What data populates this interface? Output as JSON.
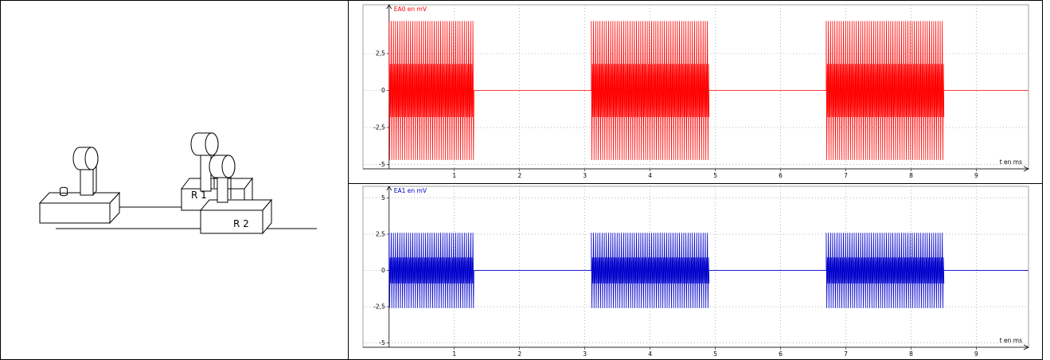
{
  "diagram": {
    "labels": {
      "r1": "R 1",
      "r2": "R 2"
    },
    "icons": [
      "emitter-icon",
      "receiver-r1-icon",
      "receiver-r2-icon"
    ]
  },
  "chart_data": [
    {
      "type": "line",
      "name_id": "ea0",
      "ylabel": "EA0 en mV",
      "xlabel": "t en ms",
      "ylim": [
        -5.3,
        5.8
      ],
      "xlim": [
        -0.4,
        9.8
      ],
      "grid": true,
      "yticks": [
        -5,
        -2.5,
        0,
        2.5
      ],
      "ytick_labels": [
        "-5",
        "-2,5",
        "0",
        "2,5"
      ],
      "xticks": [
        1,
        2,
        3,
        4,
        5,
        6,
        7,
        8,
        9
      ],
      "xtick_labels": [
        "1",
        "2",
        "3",
        "4",
        "5",
        "6",
        "7",
        "8",
        "9"
      ],
      "color": "#ff0000",
      "bursts": [
        [
          0,
          1.3
        ],
        [
          3.1,
          4.9
        ],
        [
          6.7,
          8.5
        ]
      ],
      "burst_amplitude_levels": [
        4.7,
        1.8,
        -1.8,
        -4.7
      ],
      "baseline": 0
    },
    {
      "type": "line",
      "name_id": "ea1",
      "ylabel": "EA1 en mV",
      "xlabel": "t en ms",
      "ylim": [
        -5.3,
        5.8
      ],
      "xlim": [
        -0.4,
        9.8
      ],
      "grid": true,
      "yticks": [
        -5,
        -2.5,
        0,
        2.5,
        5
      ],
      "ytick_labels": [
        "-5",
        "-2,5",
        "0",
        "2,5",
        "5"
      ],
      "xticks": [
        1,
        2,
        3,
        4,
        5,
        6,
        7,
        8,
        9
      ],
      "xtick_labels": [
        "1",
        "2",
        "3",
        "4",
        "5",
        "6",
        "7",
        "8",
        "9"
      ],
      "color": "#0000cc",
      "bursts": [
        [
          0,
          1.3
        ],
        [
          3.1,
          4.9
        ],
        [
          6.7,
          8.5
        ]
      ],
      "burst_amplitude_levels": [
        2.6,
        0.9,
        -0.9,
        -2.6
      ],
      "baseline": 0
    }
  ]
}
